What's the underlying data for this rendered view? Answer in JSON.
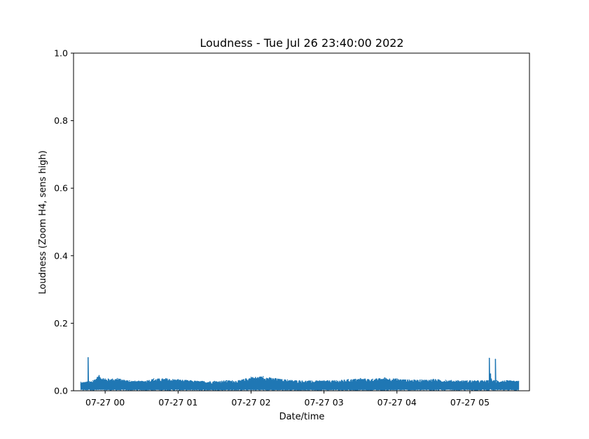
{
  "chart_data": {
    "type": "line",
    "title": "Loudness - Tue Jul 26 23:40:00 2022",
    "xlabel": "Date/time",
    "ylabel": "Loudness (Zoom H4, sens high)",
    "ylim": [
      0,
      1.0
    ],
    "xlim": [
      "2022-07-26T23:34",
      "2022-07-27T05:49"
    ],
    "yticks": [
      0.0,
      0.2,
      0.4,
      0.6,
      0.8,
      1.0
    ],
    "ytick_labels": [
      "0.0",
      "0.2",
      "0.4",
      "0.6",
      "0.8",
      "1.0"
    ],
    "xticks": [
      "2022-07-27T00:00",
      "2022-07-27T01:00",
      "2022-07-27T02:00",
      "2022-07-27T03:00",
      "2022-07-27T04:00",
      "2022-07-27T05:00"
    ],
    "xtick_labels": [
      "07-27 00",
      "07-27 01",
      "07-27 02",
      "07-27 03",
      "07-27 04",
      "07-27 05"
    ],
    "grid": false,
    "line_color": "#1f77b4",
    "series": [
      {
        "x": [
          "2022-07-26T23:40",
          "2022-07-26T23:45",
          "2022-07-26T23:46",
          "2022-07-26T23:47",
          "2022-07-26T23:50",
          "2022-07-26T23:55",
          "2022-07-27T00:00",
          "2022-07-27T00:10",
          "2022-07-27T00:20",
          "2022-07-27T00:30",
          "2022-07-27T00:40",
          "2022-07-27T00:50",
          "2022-07-27T01:00",
          "2022-07-27T01:10",
          "2022-07-27T01:20",
          "2022-07-27T01:30",
          "2022-07-27T01:40",
          "2022-07-27T01:50",
          "2022-07-27T02:00",
          "2022-07-27T02:10",
          "2022-07-27T02:20",
          "2022-07-27T02:30",
          "2022-07-27T02:40",
          "2022-07-27T02:50",
          "2022-07-27T03:00",
          "2022-07-27T03:10",
          "2022-07-27T03:20",
          "2022-07-27T03:30",
          "2022-07-27T03:40",
          "2022-07-27T03:50",
          "2022-07-27T04:00",
          "2022-07-27T04:10",
          "2022-07-27T04:20",
          "2022-07-27T04:30",
          "2022-07-27T04:40",
          "2022-07-27T04:50",
          "2022-07-27T05:00",
          "2022-07-27T05:10",
          "2022-07-27T05:15",
          "2022-07-27T05:16",
          "2022-07-27T05:17",
          "2022-07-27T05:18",
          "2022-07-27T05:20",
          "2022-07-27T05:21",
          "2022-07-27T05:22",
          "2022-07-27T05:30",
          "2022-07-27T05:40"
        ],
        "y": [
          0.025,
          0.026,
          0.098,
          0.027,
          0.03,
          0.045,
          0.035,
          0.036,
          0.03,
          0.028,
          0.035,
          0.036,
          0.033,
          0.03,
          0.028,
          0.028,
          0.03,
          0.03,
          0.04,
          0.042,
          0.036,
          0.032,
          0.03,
          0.029,
          0.03,
          0.03,
          0.033,
          0.036,
          0.034,
          0.038,
          0.035,
          0.032,
          0.032,
          0.034,
          0.031,
          0.03,
          0.03,
          0.03,
          0.03,
          0.096,
          0.05,
          0.03,
          0.03,
          0.093,
          0.03,
          0.03,
          0.028
        ]
      }
    ]
  }
}
